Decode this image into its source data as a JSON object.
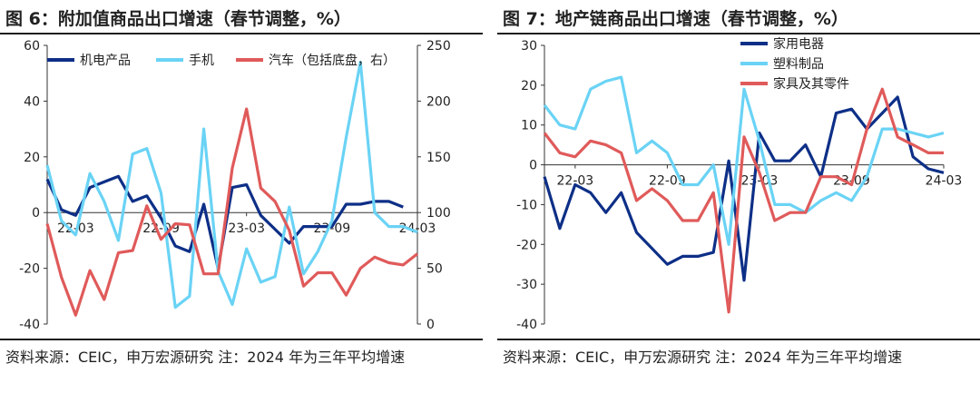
{
  "panels": [
    {
      "title": "图 6：附加值商品出口增速（春节调整，%）",
      "source": "资料来源：CEIC，申万宏源研究 注：2024 年为三年平均增速"
    },
    {
      "title": "图 7：地产链商品出口增速（春节调整，%）",
      "source": "资料来源：CEIC，申万宏源研究 注：2024 年为三年平均增速"
    }
  ],
  "chart_data": [
    {
      "type": "line",
      "title": "图 6：附加值商品出口增速（春节调整，%）",
      "x": [
        "22-01",
        "22-02",
        "22-03",
        "22-04",
        "22-05",
        "22-06",
        "22-07",
        "22-08",
        "22-09",
        "22-10",
        "22-11",
        "22-12",
        "23-01",
        "23-02",
        "23-03",
        "23-04",
        "23-05",
        "23-06",
        "23-07",
        "23-08",
        "23-09",
        "23-10",
        "23-11",
        "23-12",
        "24-01",
        "24-02",
        "24-03"
      ],
      "xticks": [
        "22-03",
        "22-09",
        "23-03",
        "23-09",
        "24-03"
      ],
      "ylim": [
        -40,
        60
      ],
      "yticks": [
        -40,
        -20,
        0,
        20,
        40,
        60
      ],
      "y2lim": [
        0,
        250
      ],
      "y2ticks": [
        0,
        50,
        100,
        150,
        200,
        250
      ],
      "legend_position": "top",
      "grid": false,
      "series": [
        {
          "name": "机电产品",
          "axis": "left",
          "color": "#0d2f87",
          "values": [
            12,
            1,
            -1,
            9,
            11,
            13,
            4,
            6,
            -2,
            -12,
            -14,
            3,
            -20,
            9,
            10,
            -1,
            -6,
            -11,
            -5,
            -5,
            -5,
            3,
            3,
            4,
            4,
            2,
            null
          ]
        },
        {
          "name": "手机",
          "axis": "left",
          "color": "#6ad3f5",
          "values": [
            17,
            -3,
            -8,
            14,
            4,
            -10,
            21,
            23,
            7,
            -34,
            -30,
            30,
            -21,
            -33,
            -13,
            -25,
            -23,
            2,
            -22,
            -14,
            -3,
            27,
            54,
            0,
            -5,
            -5,
            -7
          ]
        },
        {
          "name": "汽车（包括底盘，右）",
          "axis": "right",
          "color": "#e05a5a",
          "values": [
            90,
            42,
            8,
            48,
            22,
            64,
            66,
            106,
            76,
            90,
            89,
            45,
            45,
            140,
            193,
            122,
            110,
            84,
            34,
            46,
            46,
            26,
            50,
            60,
            55,
            53,
            63
          ]
        }
      ]
    },
    {
      "type": "line",
      "title": "图 7：地产链商品出口增速（春节调整，%）",
      "x": [
        "22-01",
        "22-02",
        "22-03",
        "22-04",
        "22-05",
        "22-06",
        "22-07",
        "22-08",
        "22-09",
        "22-10",
        "22-11",
        "22-12",
        "23-01",
        "23-02",
        "23-03",
        "23-04",
        "23-05",
        "23-06",
        "23-07",
        "23-08",
        "23-09",
        "23-10",
        "23-11",
        "23-12",
        "24-01",
        "24-02",
        "24-03"
      ],
      "xticks": [
        "22-03",
        "22-09",
        "23-03",
        "23-09",
        "24-03"
      ],
      "ylim": [
        -40,
        30
      ],
      "yticks": [
        -40,
        -30,
        -20,
        -10,
        0,
        10,
        20,
        30
      ],
      "legend_position": "top-right",
      "grid": false,
      "series": [
        {
          "name": "家用电器",
          "color": "#0d2f87",
          "values": [
            -3,
            -16,
            -5,
            -7,
            -12,
            -7,
            -17,
            -21,
            -25,
            -23,
            -23,
            -22,
            1,
            -29,
            8,
            1,
            1,
            5,
            -3,
            13,
            14,
            9,
            13,
            17,
            2,
            -1,
            -2
          ]
        },
        {
          "name": "塑料制品",
          "color": "#6ad3f5",
          "values": [
            15,
            10,
            9,
            19,
            21,
            22,
            3,
            6,
            3,
            -5,
            -5,
            0,
            -20,
            19,
            6,
            -10,
            -10,
            -12,
            -9,
            -7,
            -9,
            -3,
            9,
            9,
            8,
            7,
            8
          ]
        },
        {
          "name": "家具及其零件",
          "color": "#e05a5a",
          "values": [
            8,
            3,
            2,
            6,
            5,
            3,
            -9,
            -6,
            -9,
            -14,
            -14,
            -7,
            -37,
            7,
            -2,
            -14,
            -12,
            -12,
            -3,
            -3,
            -5,
            9,
            19,
            7,
            5,
            3,
            3
          ]
        }
      ]
    }
  ]
}
